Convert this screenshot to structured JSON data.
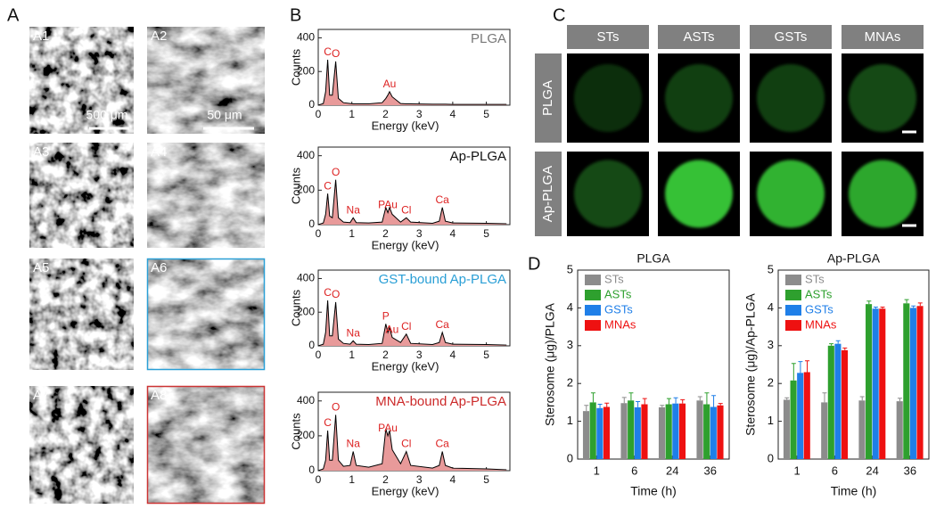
{
  "panel_labels": [
    "A",
    "B",
    "C",
    "D"
  ],
  "sem": {
    "labels": [
      "A1",
      "A2",
      "A3",
      "A4",
      "A5",
      "A6",
      "A7",
      "A8"
    ],
    "scale_bars": [
      "500 μm",
      "50 μm"
    ]
  },
  "fluorescence": {
    "columns": [
      "STs",
      "ASTs",
      "GSTs",
      "MNAs"
    ],
    "rows": [
      "PLGA",
      "Ap-PLGA"
    ]
  },
  "chart_data": [
    {
      "type": "line",
      "title": "PLGA",
      "title_color": "#777777",
      "color": "#000000",
      "fill_color": "#e89a9a",
      "x": [
        0,
        0.15,
        0.22,
        0.28,
        0.34,
        0.42,
        0.52,
        0.6,
        0.75,
        0.95,
        1.04,
        1.13,
        1.5,
        1.9,
        2.01,
        2.07,
        2.12,
        2.2,
        2.45,
        2.62,
        2.75,
        3.4,
        3.6,
        3.69,
        3.78,
        4.0,
        5.0,
        5.6
      ],
      "values": [
        0,
        10,
        80,
        270,
        60,
        60,
        260,
        40,
        15,
        10,
        8,
        8,
        8,
        15,
        40,
        60,
        80,
        50,
        10,
        8,
        8,
        6,
        6,
        6,
        6,
        5,
        5,
        5
      ],
      "xlim": [
        0,
        5.7
      ],
      "xticks": [
        0,
        1,
        2,
        3,
        4,
        5
      ],
      "ylim": [
        0,
        450
      ],
      "yticks": [
        0,
        200,
        400
      ],
      "xlabel": "Energy (keV)",
      "ylabel": "Counts",
      "annotations": [
        {
          "text": "C",
          "x": 0.28
        },
        {
          "text": "O",
          "x": 0.52
        },
        {
          "text": "Au",
          "x": 2.12
        }
      ]
    },
    {
      "type": "line",
      "title": "Ap-PLGA",
      "title_color": "#111111",
      "color": "#000000",
      "fill_color": "#e89a9a",
      "x": [
        0,
        0.15,
        0.22,
        0.28,
        0.34,
        0.42,
        0.52,
        0.6,
        0.75,
        0.95,
        1.04,
        1.13,
        1.5,
        1.9,
        2.01,
        2.07,
        2.12,
        2.2,
        2.45,
        2.62,
        2.75,
        3.4,
        3.6,
        3.69,
        3.78,
        4.0,
        5.0,
        5.6
      ],
      "values": [
        0,
        10,
        60,
        180,
        50,
        40,
        260,
        40,
        15,
        12,
        40,
        12,
        10,
        15,
        100,
        70,
        100,
        60,
        15,
        40,
        15,
        8,
        20,
        100,
        20,
        10,
        8,
        5
      ],
      "xlim": [
        0,
        5.7
      ],
      "xticks": [
        0,
        1,
        2,
        3,
        4,
        5
      ],
      "ylim": [
        0,
        450
      ],
      "yticks": [
        0,
        200,
        400
      ],
      "xlabel": "Energy (keV)",
      "ylabel": "Counts",
      "annotations": [
        {
          "text": "C",
          "x": 0.28
        },
        {
          "text": "O",
          "x": 0.52
        },
        {
          "text": "Na",
          "x": 1.04
        },
        {
          "text": "PAu",
          "x": 2.07
        },
        {
          "text": "Cl",
          "x": 2.62
        },
        {
          "text": "Ca",
          "x": 3.69
        }
      ]
    },
    {
      "type": "line",
      "title": "GST-bound Ap-PLGA",
      "title_color": "#2a9fd6",
      "color": "#000000",
      "fill_color": "#e89a9a",
      "x": [
        0,
        0.15,
        0.22,
        0.28,
        0.34,
        0.42,
        0.52,
        0.6,
        0.75,
        0.95,
        1.04,
        1.13,
        1.5,
        1.9,
        2.01,
        2.07,
        2.12,
        2.2,
        2.45,
        2.62,
        2.75,
        3.4,
        3.6,
        3.69,
        3.78,
        4.0,
        5.0,
        5.6
      ],
      "values": [
        0,
        10,
        80,
        270,
        60,
        60,
        260,
        40,
        15,
        10,
        30,
        10,
        8,
        15,
        130,
        80,
        110,
        50,
        20,
        70,
        15,
        8,
        20,
        80,
        20,
        10,
        8,
        5
      ],
      "xlim": [
        0,
        5.7
      ],
      "xticks": [
        0,
        1,
        2,
        3,
        4,
        5
      ],
      "ylim": [
        0,
        450
      ],
      "yticks": [
        0,
        200,
        400
      ],
      "xlabel": "Energy (keV)",
      "ylabel": "Counts",
      "annotations": [
        {
          "text": "C",
          "x": 0.28
        },
        {
          "text": "O",
          "x": 0.52
        },
        {
          "text": "Na",
          "x": 1.04
        },
        {
          "text": "P",
          "x": 2.01
        },
        {
          "text": "Au",
          "x": 2.2
        },
        {
          "text": "Cl",
          "x": 2.62
        },
        {
          "text": "Ca",
          "x": 3.69
        }
      ]
    },
    {
      "type": "line",
      "title": "MNA-bound Ap-PLGA",
      "title_color": "#cc2a2a",
      "color": "#000000",
      "fill_color": "#e89a9a",
      "x": [
        0,
        0.15,
        0.22,
        0.28,
        0.34,
        0.42,
        0.52,
        0.6,
        0.75,
        0.95,
        1.04,
        1.13,
        1.5,
        1.9,
        2.01,
        2.07,
        2.12,
        2.2,
        2.45,
        2.62,
        2.75,
        3.4,
        3.6,
        3.69,
        3.78,
        4.0,
        5.0,
        5.6
      ],
      "values": [
        0,
        10,
        60,
        230,
        60,
        60,
        320,
        60,
        25,
        30,
        110,
        30,
        20,
        40,
        240,
        200,
        230,
        120,
        40,
        110,
        30,
        15,
        30,
        110,
        30,
        15,
        10,
        5
      ],
      "xlim": [
        0,
        5.7
      ],
      "xticks": [
        0,
        1,
        2,
        3,
        4,
        5
      ],
      "ylim": [
        0,
        450
      ],
      "yticks": [
        0,
        200,
        400
      ],
      "xlabel": "Energy (keV)",
      "ylabel": "Counts",
      "annotations": [
        {
          "text": "C",
          "x": 0.28
        },
        {
          "text": "O",
          "x": 0.52
        },
        {
          "text": "Na",
          "x": 1.04
        },
        {
          "text": "PAu",
          "x": 2.07
        },
        {
          "text": "Cl",
          "x": 2.62
        },
        {
          "text": "Ca",
          "x": 3.69
        }
      ]
    },
    {
      "type": "bar",
      "title": "PLGA",
      "categories": [
        "1",
        "6",
        "24",
        "36"
      ],
      "series": [
        {
          "name": "STs",
          "color": "#8c8c8c",
          "values": [
            1.27,
            1.48,
            1.37,
            1.55
          ],
          "errors": [
            0.15,
            0.15,
            0.05,
            0.1
          ]
        },
        {
          "name": "ASTs",
          "color": "#2ea02e",
          "values": [
            1.5,
            1.55,
            1.45,
            1.45
          ],
          "errors": [
            0.25,
            0.2,
            0.15,
            0.3
          ]
        },
        {
          "name": "GSTs",
          "color": "#1f7fe8",
          "values": [
            1.35,
            1.37,
            1.47,
            1.38
          ],
          "errors": [
            0.1,
            0.15,
            0.15,
            0.3
          ]
        },
        {
          "name": "MNAs",
          "color": "#ee1111",
          "values": [
            1.38,
            1.45,
            1.47,
            1.42
          ],
          "errors": [
            0.1,
            0.15,
            0.1,
            0.05
          ]
        }
      ],
      "ylim": [
        0,
        5
      ],
      "yticks": [
        0,
        1,
        2,
        3,
        4,
        5
      ],
      "ylabel": "Sterosome (μg)/PLGA",
      "xlabel": "Time (h)",
      "legend": "upper left"
    },
    {
      "type": "bar",
      "title": "Ap-PLGA",
      "categories": [
        "1",
        "6",
        "24",
        "36"
      ],
      "series": [
        {
          "name": "STs",
          "color": "#8c8c8c",
          "values": [
            1.57,
            1.5,
            1.55,
            1.53
          ],
          "errors": [
            0.05,
            0.25,
            0.1,
            0.08
          ]
        },
        {
          "name": "ASTs",
          "color": "#2ea02e",
          "values": [
            2.08,
            3.0,
            4.1,
            4.12
          ],
          "errors": [
            0.45,
            0.05,
            0.08,
            0.1
          ]
        },
        {
          "name": "GSTs",
          "color": "#1f7fe8",
          "values": [
            2.28,
            3.05,
            3.98,
            4.0
          ],
          "errors": [
            0.3,
            0.08,
            0.04,
            0.05
          ]
        },
        {
          "name": "MNAs",
          "color": "#ee1111",
          "values": [
            2.3,
            2.88,
            3.98,
            4.05
          ],
          "errors": [
            0.3,
            0.06,
            0.04,
            0.08
          ]
        }
      ],
      "ylim": [
        0,
        5
      ],
      "yticks": [
        0,
        1,
        2,
        3,
        4,
        5
      ],
      "ylabel": "Sterosome (μg)/Ap-PLGA",
      "xlabel": "Time (h)",
      "legend": "upper left"
    }
  ]
}
